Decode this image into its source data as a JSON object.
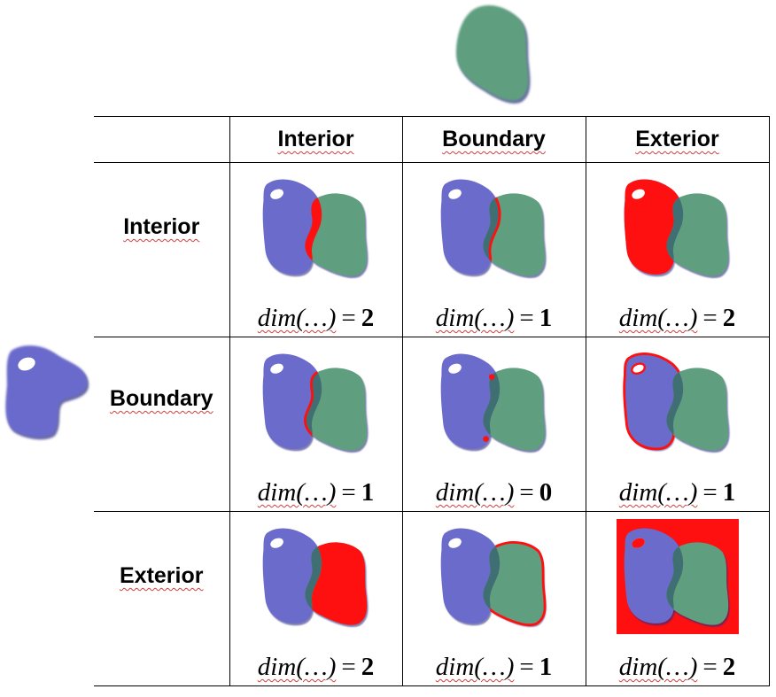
{
  "columns": [
    {
      "label": "Interior"
    },
    {
      "label": "Boundary"
    },
    {
      "label": "Exterior"
    }
  ],
  "rows": [
    {
      "label": "Interior",
      "cells": [
        {
          "fig": "ii",
          "dim_text": "dim(…)",
          "eq": "=",
          "value": "2"
        },
        {
          "fig": "ib",
          "dim_text": "dim(…)",
          "eq": "=",
          "value": "1"
        },
        {
          "fig": "ie",
          "dim_text": "dim(…)",
          "eq": "=",
          "value": "2"
        }
      ]
    },
    {
      "label": "Boundary",
      "cells": [
        {
          "fig": "bi",
          "dim_text": "dim(…)",
          "eq": "=",
          "value": "1"
        },
        {
          "fig": "bb",
          "dim_text": "dim(…)",
          "eq": "=",
          "value": "0"
        },
        {
          "fig": "be",
          "dim_text": "dim(…)",
          "eq": "=",
          "value": "1"
        }
      ]
    },
    {
      "label": "Exterior",
      "cells": [
        {
          "fig": "ei",
          "dim_text": "dim(…)",
          "eq": "=",
          "value": "2"
        },
        {
          "fig": "eb",
          "dim_text": "dim(…)",
          "eq": "=",
          "value": "1"
        },
        {
          "fig": "ee",
          "dim_text": "dim(…)",
          "eq": "=",
          "value": "2"
        }
      ]
    }
  ],
  "colors": {
    "geometry_a": "#6b6bcc",
    "geometry_b": "#5f9f7f",
    "overlap": "#3f6f73",
    "highlight": "#ff1010",
    "shadow": "#2a2a80"
  }
}
